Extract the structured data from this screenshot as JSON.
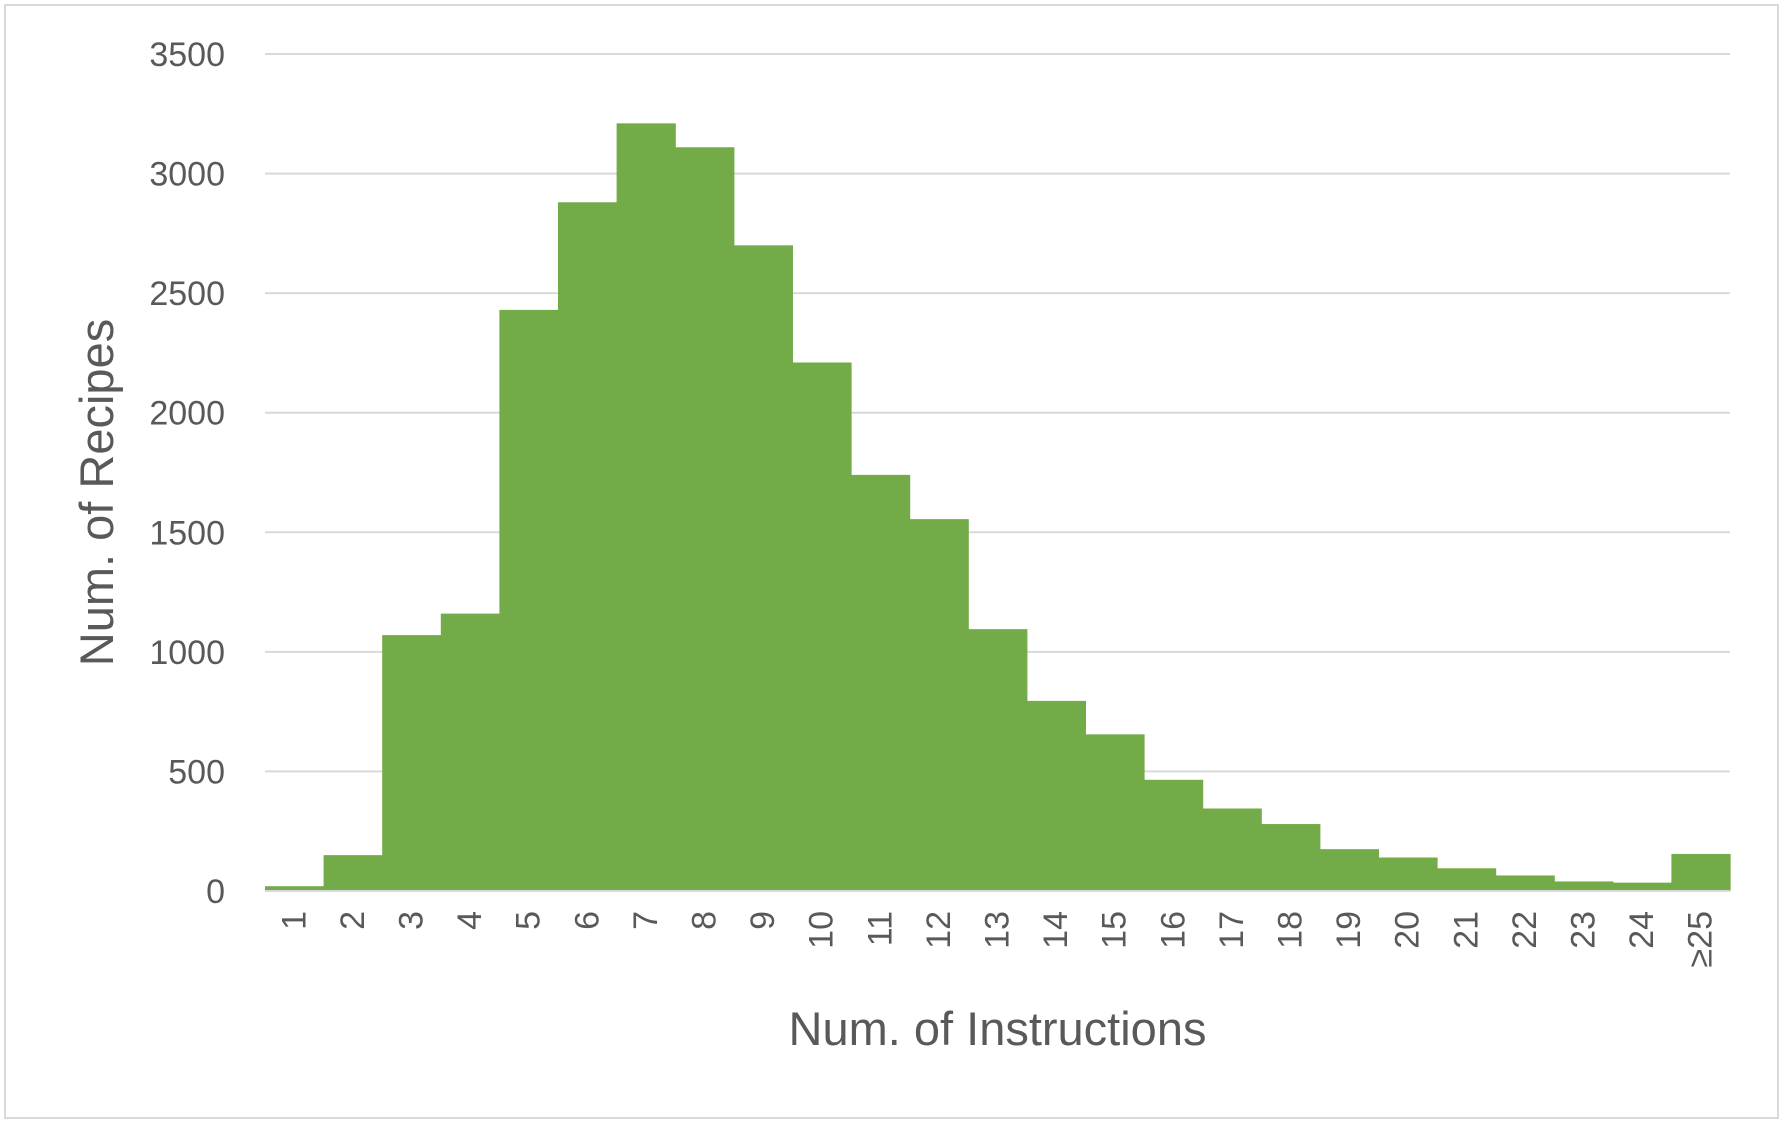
{
  "chart_data": {
    "type": "bar",
    "title": "",
    "xlabel": "Num. of Instructions",
    "ylabel": "Num. of Recipes",
    "categories": [
      "1",
      "2",
      "3",
      "4",
      "5",
      "6",
      "7",
      "8",
      "9",
      "10",
      "11",
      "12",
      "13",
      "14",
      "15",
      "16",
      "17",
      "18",
      "19",
      "20",
      "21",
      "22",
      "23",
      "24",
      "≥25"
    ],
    "values": [
      20,
      150,
      1070,
      1160,
      2430,
      2880,
      3210,
      3110,
      2700,
      2210,
      1740,
      1555,
      1095,
      795,
      655,
      465,
      345,
      280,
      175,
      140,
      95,
      65,
      40,
      35,
      155
    ],
    "ylim": [
      0,
      3500
    ],
    "yticks": [
      0,
      500,
      1000,
      1500,
      2000,
      2500,
      3000,
      3500
    ],
    "grid": true,
    "legend": "none",
    "bar_color": "#72ab48",
    "grid_color": "#d9d9d9",
    "text_color": "#595959"
  }
}
